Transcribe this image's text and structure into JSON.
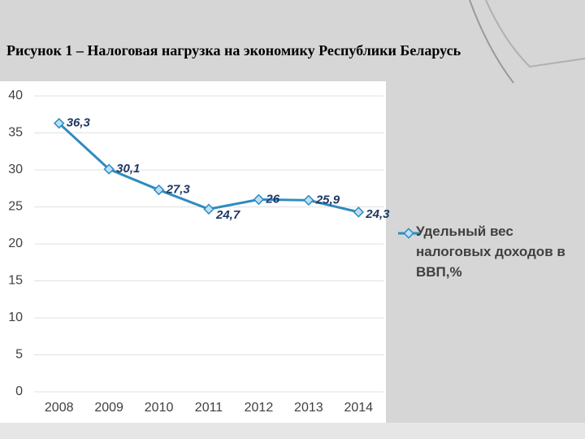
{
  "chart_data": {
    "type": "line",
    "title": "Рисунок 1  – Налоговая нагрузка на экономику Республики Беларусь",
    "categories": [
      "2008",
      "2009",
      "2010",
      "2011",
      "2012",
      "2013",
      "2014"
    ],
    "series": [
      {
        "name": "Удельный вес налоговых доходов в ВВП,%",
        "color": "#2e8bc0",
        "values": [
          36.3,
          30.1,
          27.3,
          24.7,
          26,
          25.9,
          24.3
        ],
        "value_labels": [
          "36,3",
          "30,1",
          "27,3",
          "24,7",
          "26",
          "25,9",
          "24,3"
        ]
      }
    ],
    "ylim": [
      0,
      40
    ],
    "yticks": [
      0,
      5,
      10,
      15,
      20,
      25,
      30,
      35,
      40
    ],
    "grid": true,
    "legend": "right"
  }
}
